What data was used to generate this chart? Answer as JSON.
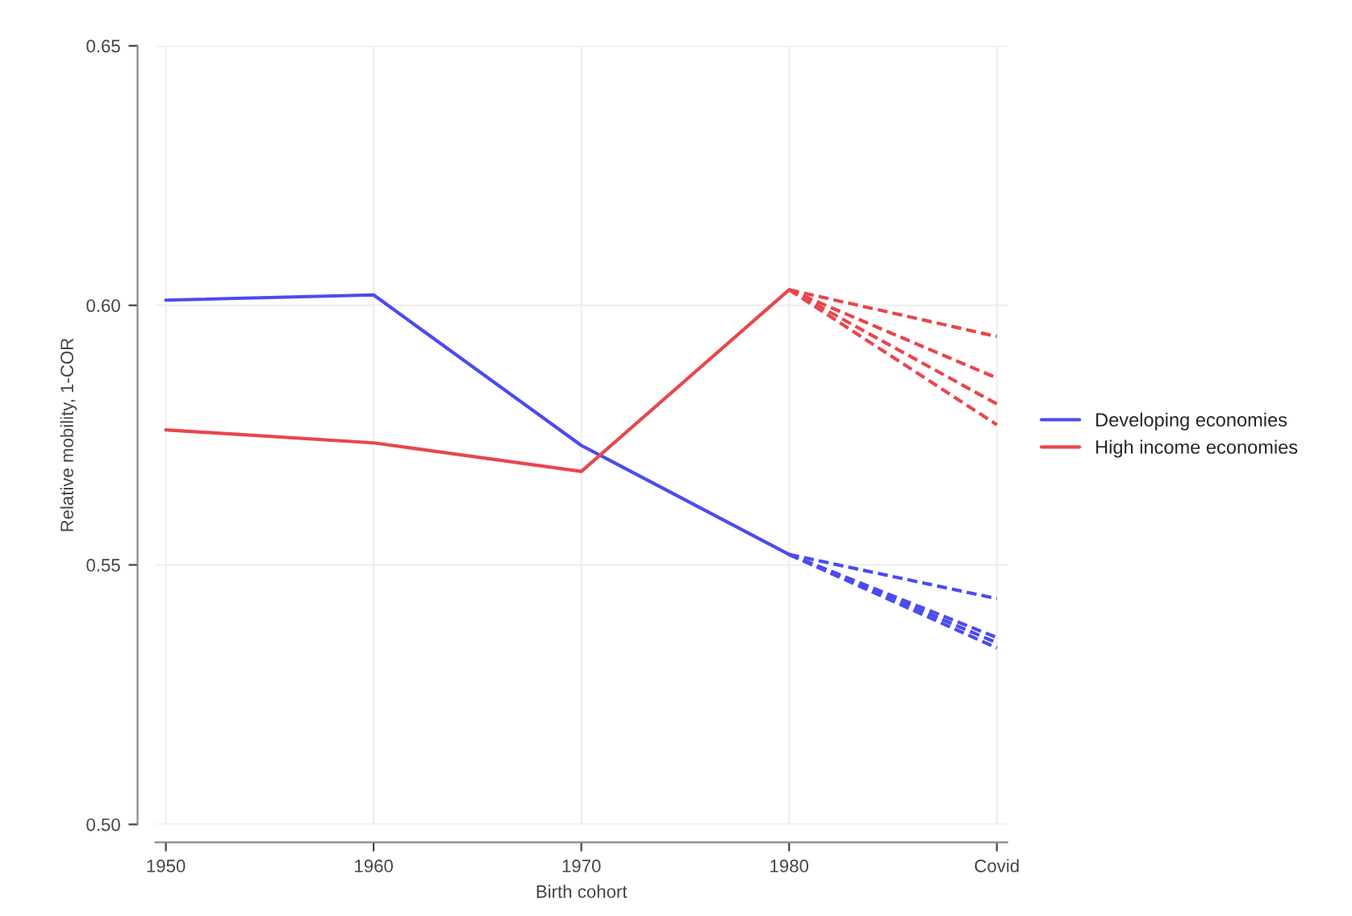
{
  "chart_data": {
    "type": "line",
    "xlabel": "Birth cohort",
    "ylabel": "Relative mobility, 1-COR",
    "categories": [
      "1950",
      "1960",
      "1970",
      "1980",
      "Covid"
    ],
    "series": [
      {
        "name": "Developing economies",
        "color": "#4b4bf0",
        "values": [
          0.601,
          0.602,
          0.573,
          0.552,
          null
        ]
      },
      {
        "name": "High income economies",
        "color": "#e8474b",
        "values": [
          0.576,
          0.5735,
          0.568,
          0.603,
          null
        ]
      },
      {
        "color": "#e8474b",
        "line_style": "dashed",
        "values": [
          null,
          null,
          null,
          0.603,
          0.594
        ]
      },
      {
        "color": "#e8474b",
        "line_style": "dashed",
        "values": [
          null,
          null,
          null,
          0.603,
          0.586
        ]
      },
      {
        "color": "#e8474b",
        "line_style": "dashed",
        "values": [
          null,
          null,
          null,
          0.603,
          0.581
        ]
      },
      {
        "color": "#e8474b",
        "line_style": "dashed",
        "values": [
          null,
          null,
          null,
          0.603,
          0.577
        ]
      },
      {
        "color": "#4b4bf0",
        "line_style": "dashed",
        "values": [
          null,
          null,
          null,
          0.552,
          0.5435
        ]
      },
      {
        "color": "#4b4bf0",
        "line_style": "dashed",
        "values": [
          null,
          null,
          null,
          0.552,
          0.536
        ]
      },
      {
        "color": "#4b4bf0",
        "line_style": "dashed",
        "values": [
          null,
          null,
          null,
          0.552,
          0.535
        ]
      },
      {
        "color": "#4b4bf0",
        "line_style": "dashed",
        "values": [
          null,
          null,
          null,
          0.552,
          0.534
        ]
      }
    ],
    "ylim": [
      0.5,
      0.65
    ],
    "yticks": [
      {
        "value": 0.5,
        "label": "0.50"
      },
      {
        "value": 0.55,
        "label": "0.55"
      },
      {
        "value": 0.6,
        "label": "0.60"
      },
      {
        "value": 0.65,
        "label": "0.65"
      }
    ],
    "grid": true,
    "legend": "right"
  }
}
